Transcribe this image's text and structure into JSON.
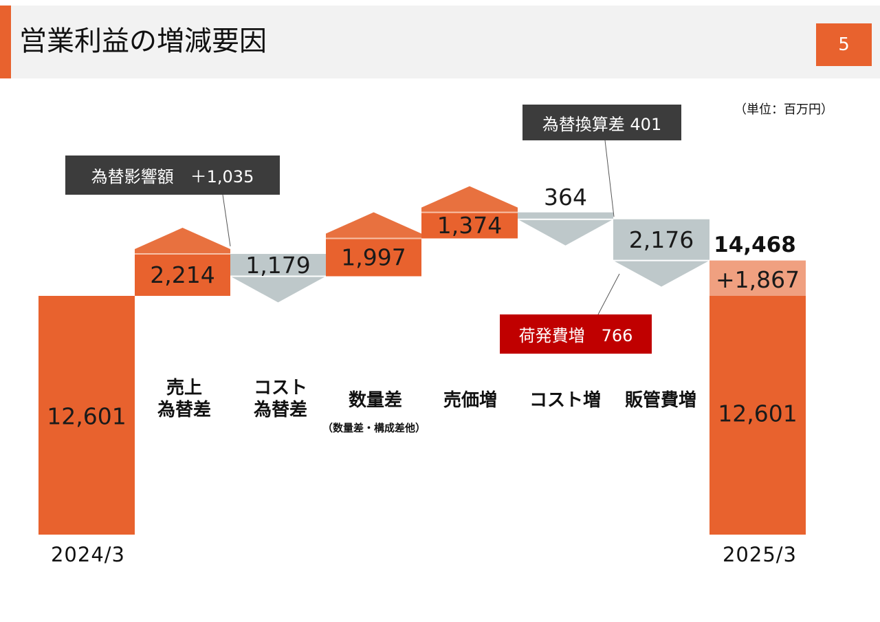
{
  "header": {
    "title": "営業利益の増減要因",
    "page_number": "5",
    "unit_note": "（単位：百万円）"
  },
  "colors": {
    "accent": "#e8622e",
    "increase_cap": "#e8713f",
    "decrease": "#bec8ca",
    "net_change": "#f0a080",
    "annotation_dark": "#3c3c3c",
    "annotation_red": "#c00000"
  },
  "annotations": {
    "fx_impact": "為替影響額　＋1,035",
    "fx_translation": "為替換算差 401",
    "shipping_cost": "荷発費増　766"
  },
  "categories": {
    "sales_fx": [
      "売上",
      "為替差"
    ],
    "cost_fx": [
      "コスト",
      "為替差"
    ],
    "volume": "数量差",
    "volume_sub": "（数量差・構成差他）",
    "price": "売価増",
    "cost_up": "コスト増",
    "sga": "販管費増"
  },
  "periods": {
    "start": "2024/3",
    "end": "2025/3"
  },
  "chart_data": {
    "type": "waterfall",
    "title": "営業利益の増減要因",
    "unit": "（単位：百万円）",
    "start": {
      "label": "2024/3",
      "value": 12601,
      "value_label": "12,601"
    },
    "steps": [
      {
        "category": "売上為替差",
        "value": 2214,
        "value_label": "2,214",
        "direction": "increase"
      },
      {
        "category": "コスト為替差",
        "value": -1179,
        "value_label": "1,179",
        "direction": "decrease"
      },
      {
        "category": "数量差（数量差・構成差他）",
        "value": 1997,
        "value_label": "1,997",
        "direction": "increase"
      },
      {
        "category": "売価増",
        "value": 1374,
        "value_label": "1,374",
        "direction": "increase"
      },
      {
        "category": "コスト増",
        "value": -364,
        "value_label": "364",
        "direction": "decrease"
      },
      {
        "category": "販管費増",
        "value": -2176,
        "value_label": "2,176",
        "direction": "decrease"
      }
    ],
    "end": {
      "label": "2025/3",
      "total": 14468,
      "total_label": "14,468",
      "base": 12601,
      "base_label": "12,601",
      "change": 1867,
      "change_label": "+1,867"
    }
  }
}
